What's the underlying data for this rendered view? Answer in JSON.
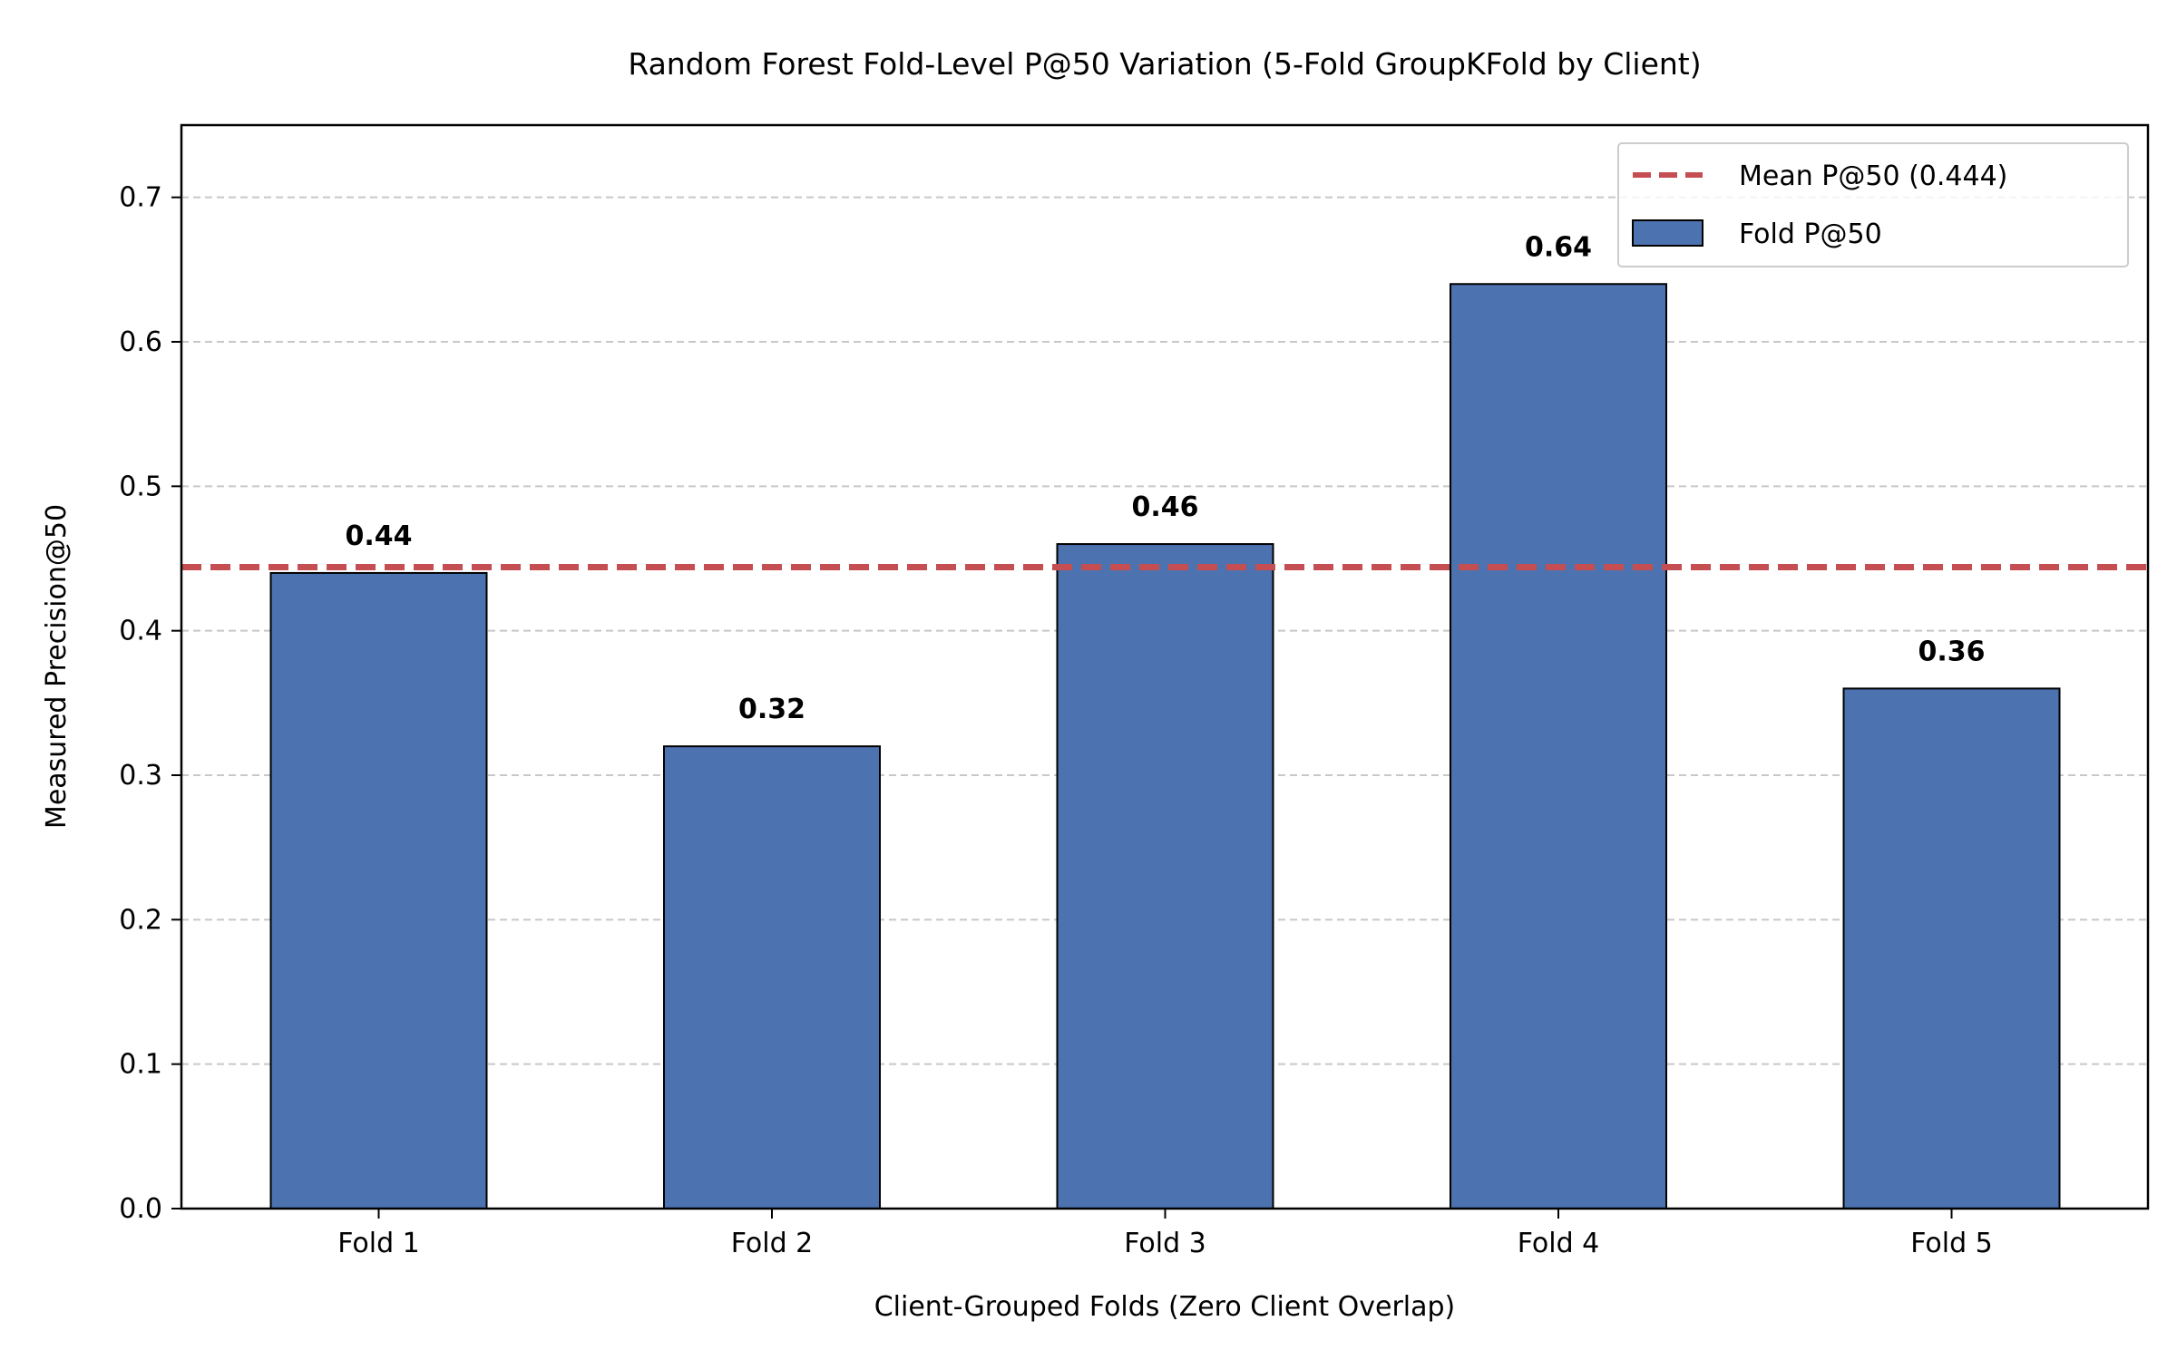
{
  "chart_data": {
    "type": "bar",
    "title": "Random Forest Fold-Level P@50 Variation (5-Fold GroupKFold by Client)",
    "xlabel": "Client-Grouped Folds (Zero Client Overlap)",
    "ylabel": "Measured Precision@50",
    "categories": [
      "Fold 1",
      "Fold 2",
      "Fold 3",
      "Fold 4",
      "Fold 5"
    ],
    "series": [
      {
        "name": "Fold P@50",
        "values": [
          0.44,
          0.32,
          0.46,
          0.64,
          0.36
        ],
        "color": "#4c72b0"
      }
    ],
    "data_labels": [
      "0.44",
      "0.32",
      "0.46",
      "0.64",
      "0.36"
    ],
    "mean_line": {
      "name": "Mean P@50 (0.444)",
      "value": 0.444,
      "color": "#c44e52"
    },
    "ylim": [
      0,
      0.75
    ],
    "yticks": [
      0.0,
      0.1,
      0.2,
      0.3,
      0.4,
      0.5,
      0.6,
      0.7
    ],
    "ytick_labels": [
      "0.0",
      "0.1",
      "0.2",
      "0.3",
      "0.4",
      "0.5",
      "0.6",
      "0.7"
    ],
    "grid": "y-dashed",
    "legend_position": "top-right"
  }
}
